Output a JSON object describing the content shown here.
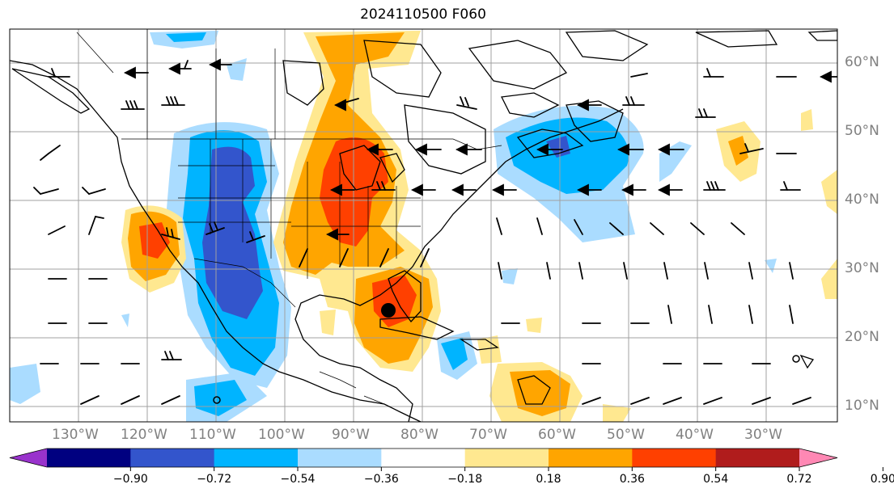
{
  "title": "2024110500 F060",
  "lat_labels": [
    "60°N",
    "50°N",
    "40°N",
    "30°N",
    "20°N",
    "10°N"
  ],
  "lon_labels": [
    "130°W",
    "120°W",
    "110°W",
    "100°W",
    "90°W",
    "80°W",
    "70°W",
    "60°W",
    "50°W",
    "40°W",
    "30°W"
  ],
  "colorbar": {
    "extend": "both",
    "colors": [
      "#9933cc",
      "#000080",
      "#3355cc",
      "#00b4ff",
      "#aadcff",
      "#ffffff",
      "#ffe890",
      "#ffa500",
      "#ff4000",
      "#b01c1c",
      "#ff88b4"
    ],
    "tick_labels": [
      "−0.90",
      "−0.72",
      "−0.54",
      "−0.36",
      "−0.18",
      "0.18",
      "0.36",
      "0.54",
      "0.72",
      "0.90"
    ]
  },
  "map": {
    "land_outline_color": "#000000",
    "grid_color": "#a0a0a0",
    "barb_color": "#000000",
    "storm_marker_color": "#000000"
  }
}
